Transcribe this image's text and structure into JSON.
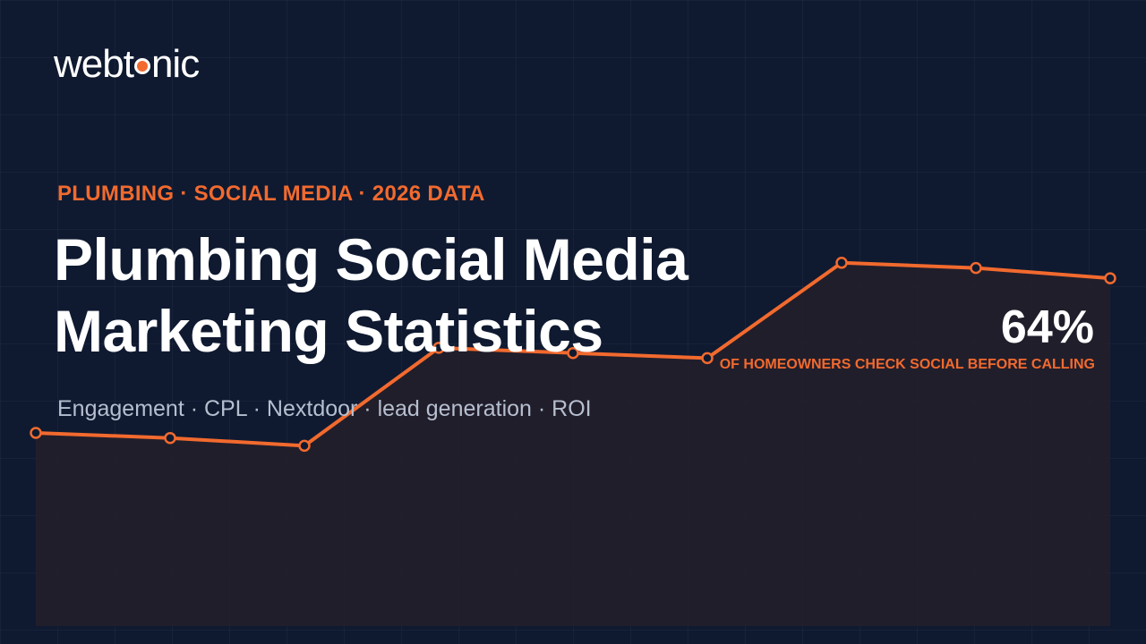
{
  "brand": {
    "name_part1": "webt",
    "name_part2": "nic"
  },
  "hero": {
    "eyebrow": "PLUMBING · SOCIAL MEDIA · 2026 DATA",
    "title_line1": "Plumbing Social Media",
    "title_line2": "Marketing Statistics",
    "subtitle": "Engagement · CPL · Nextdoor · lead generation · ROI"
  },
  "stat": {
    "value": "64%",
    "caption": "OF HOMEOWNERS CHECK SOCIAL BEFORE CALLING"
  },
  "colors": {
    "background": "#0f1a31",
    "accent": "#f26a2e",
    "text": "#ffffff",
    "muted": "#b6bfd0"
  },
  "chart_data": {
    "type": "area",
    "x": [
      0,
      1,
      2,
      3,
      4,
      5,
      6,
      7,
      8
    ],
    "values": [
      0.52,
      0.5,
      0.47,
      0.85,
      0.83,
      0.81,
      1.18,
      1.16,
      1.12
    ],
    "ylim": [
      -0.23,
      2.2
    ],
    "grid": true
  }
}
